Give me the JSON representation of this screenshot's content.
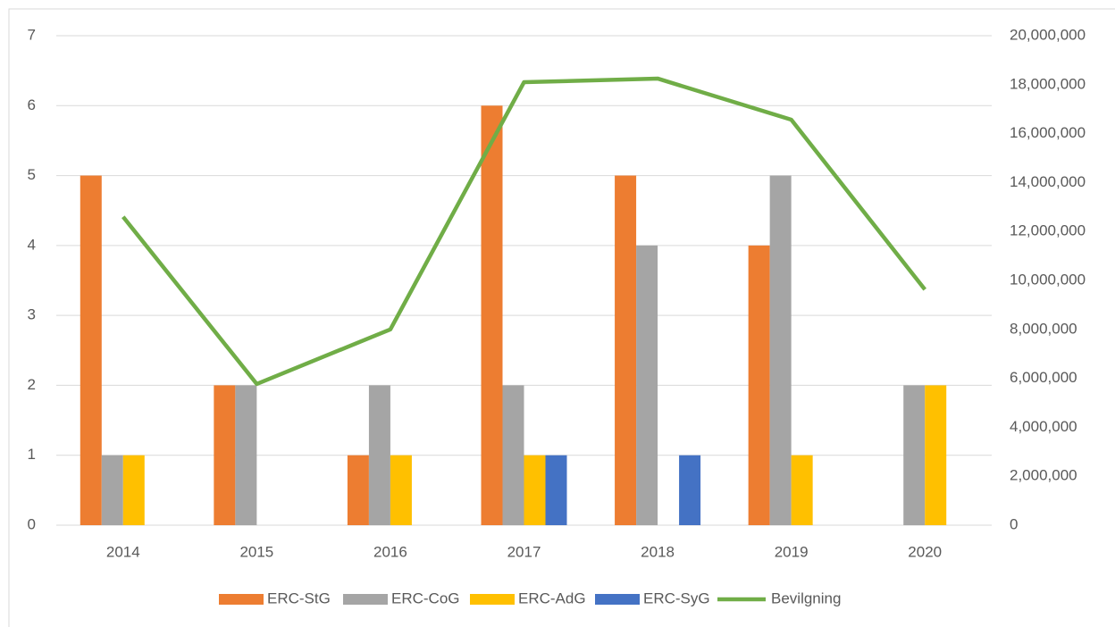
{
  "chart_data": {
    "type": "bar",
    "categories": [
      "2014",
      "2015",
      "2016",
      "2017",
      "2018",
      "2019",
      "2020"
    ],
    "series": [
      {
        "name": "ERC-StG",
        "color": "#ed7d31",
        "values": [
          5,
          2,
          1,
          6,
          5,
          4,
          0
        ]
      },
      {
        "name": "ERC-CoG",
        "color": "#a5a5a5",
        "values": [
          1,
          2,
          2,
          2,
          4,
          5,
          2
        ]
      },
      {
        "name": "ERC-AdG",
        "color": "#ffc000",
        "values": [
          1,
          0,
          1,
          1,
          0,
          1,
          2
        ]
      },
      {
        "name": "ERC-SyG",
        "color": "#4472c4",
        "values": [
          0,
          0,
          0,
          1,
          1,
          0,
          0
        ]
      },
      {
        "name": "Bevilgning",
        "color": "#70ad47",
        "type": "line",
        "axis": "y2",
        "values": [
          12600000,
          5770000,
          8000000,
          18100000,
          18250000,
          16570000,
          9630000
        ]
      }
    ],
    "ylim": [
      0,
      7
    ],
    "yticks": [
      0,
      1,
      2,
      3,
      4,
      5,
      6,
      7
    ],
    "y2lim": [
      0,
      20000000
    ],
    "y2ticks": [
      0,
      {
        "value": 2000000,
        "label": "2,000,000"
      },
      {
        "value": 4000000,
        "label": "4,000,000"
      },
      {
        "value": 6000000,
        "label": "6,000,000"
      },
      {
        "value": 8000000,
        "label": "8,000,000"
      },
      {
        "value": 10000000,
        "label": "10,000,000"
      },
      {
        "value": 12000000,
        "label": "12,000,000"
      },
      {
        "value": 14000000,
        "label": "14,000,000"
      },
      {
        "value": 16000000,
        "label": "16,000,000"
      },
      {
        "value": 18000000,
        "label": "18,000,000"
      },
      {
        "value": 20000000,
        "label": "20,000,000"
      }
    ],
    "grid": true,
    "legend": "bottom"
  }
}
